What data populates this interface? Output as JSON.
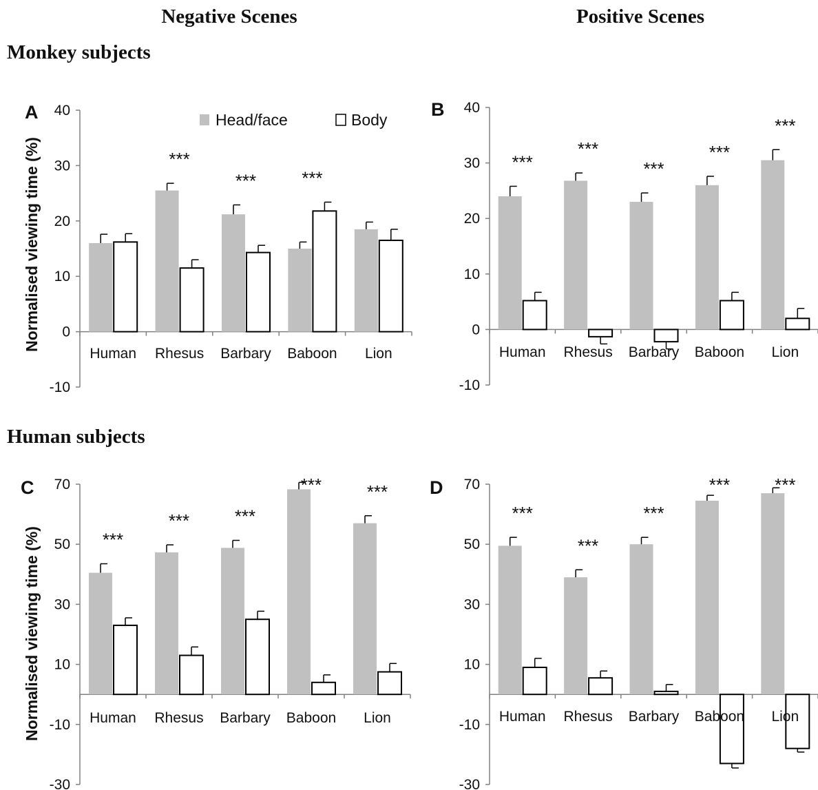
{
  "headers": {
    "negative": "Negative Scenes",
    "positive": "Positive Scenes",
    "monkey": "Monkey subjects",
    "human": "Human subjects"
  },
  "ylabel": "Normalised viewing time (%)",
  "legend": {
    "head": "Head/face",
    "body": "Body",
    "placement": "top-center of panel A"
  },
  "colors": {
    "head": "#c0c0c0",
    "body": "#ffffff",
    "stroke": "#000000",
    "axis": "#808080"
  },
  "chart_data": [
    {
      "type": "bar",
      "panel": "A",
      "categories": [
        "Human",
        "Rhesus",
        "Barbary",
        "Baboon",
        "Lion"
      ],
      "ylim": [
        -10,
        40
      ],
      "yticks": [
        40,
        30,
        20,
        10,
        0,
        -10
      ],
      "series": [
        {
          "name": "Head/face",
          "values": [
            16,
            25.5,
            21.2,
            15,
            18.5
          ],
          "errors": [
            1.6,
            1.3,
            1.7,
            1.2,
            1.3
          ]
        },
        {
          "name": "Body",
          "values": [
            16.2,
            11.5,
            14.3,
            21.8,
            16.5
          ],
          "errors": [
            1.5,
            1.5,
            1.3,
            1.6,
            2.0
          ]
        }
      ],
      "annotations": [
        "",
        "***",
        "***",
        "***",
        ""
      ]
    },
    {
      "type": "bar",
      "panel": "B",
      "categories": [
        "Human",
        "Rhesus",
        "Barbary",
        "Baboon",
        "Lion"
      ],
      "ylim": [
        -10,
        40
      ],
      "yticks": [
        40,
        30,
        20,
        10,
        0,
        -10
      ],
      "series": [
        {
          "name": "Head/face",
          "values": [
            24,
            26.8,
            23,
            26,
            30.5
          ],
          "errors": [
            1.8,
            1.4,
            1.6,
            1.6,
            1.9
          ]
        },
        {
          "name": "Body",
          "values": [
            5.2,
            -1.3,
            -2.2,
            5.2,
            2
          ],
          "errors": [
            1.5,
            1.3,
            1.3,
            1.5,
            1.8
          ]
        }
      ],
      "annotations": [
        "***",
        "***",
        "***",
        "***",
        "***"
      ]
    },
    {
      "type": "bar",
      "panel": "C",
      "categories": [
        "Human",
        "Rhesus",
        "Barbary",
        "Baboon",
        "Lion"
      ],
      "ylim": [
        -30,
        70
      ],
      "yticks": [
        70,
        50,
        30,
        10,
        -10,
        -30
      ],
      "series": [
        {
          "name": "Head/face",
          "values": [
            40.5,
            47.3,
            48.8,
            68.3,
            57
          ],
          "errors": [
            3,
            2.5,
            2.5,
            2.3,
            2.5
          ]
        },
        {
          "name": "Body",
          "values": [
            23,
            13,
            25,
            4,
            7.5
          ],
          "errors": [
            2.5,
            2.8,
            2.7,
            2.5,
            2.8
          ]
        }
      ],
      "annotations": [
        "***",
        "***",
        "***",
        "***",
        "***"
      ]
    },
    {
      "type": "bar",
      "panel": "D",
      "categories": [
        "Human",
        "Rhesus",
        "Barbary",
        "Baboon",
        "Lion"
      ],
      "ylim": [
        -30,
        70
      ],
      "yticks": [
        70,
        50,
        30,
        10,
        -10,
        -30
      ],
      "series": [
        {
          "name": "Head/face",
          "values": [
            49.5,
            39,
            50,
            64.5,
            67
          ],
          "errors": [
            2.8,
            2.5,
            2.3,
            1.8,
            1.8
          ]
        },
        {
          "name": "Body",
          "values": [
            9,
            5.5,
            1,
            -23,
            -18
          ],
          "errors": [
            3,
            2.3,
            2.3,
            1.5,
            1.2
          ]
        }
      ],
      "annotations": [
        "***",
        "***",
        "***",
        "***",
        "***"
      ]
    }
  ]
}
